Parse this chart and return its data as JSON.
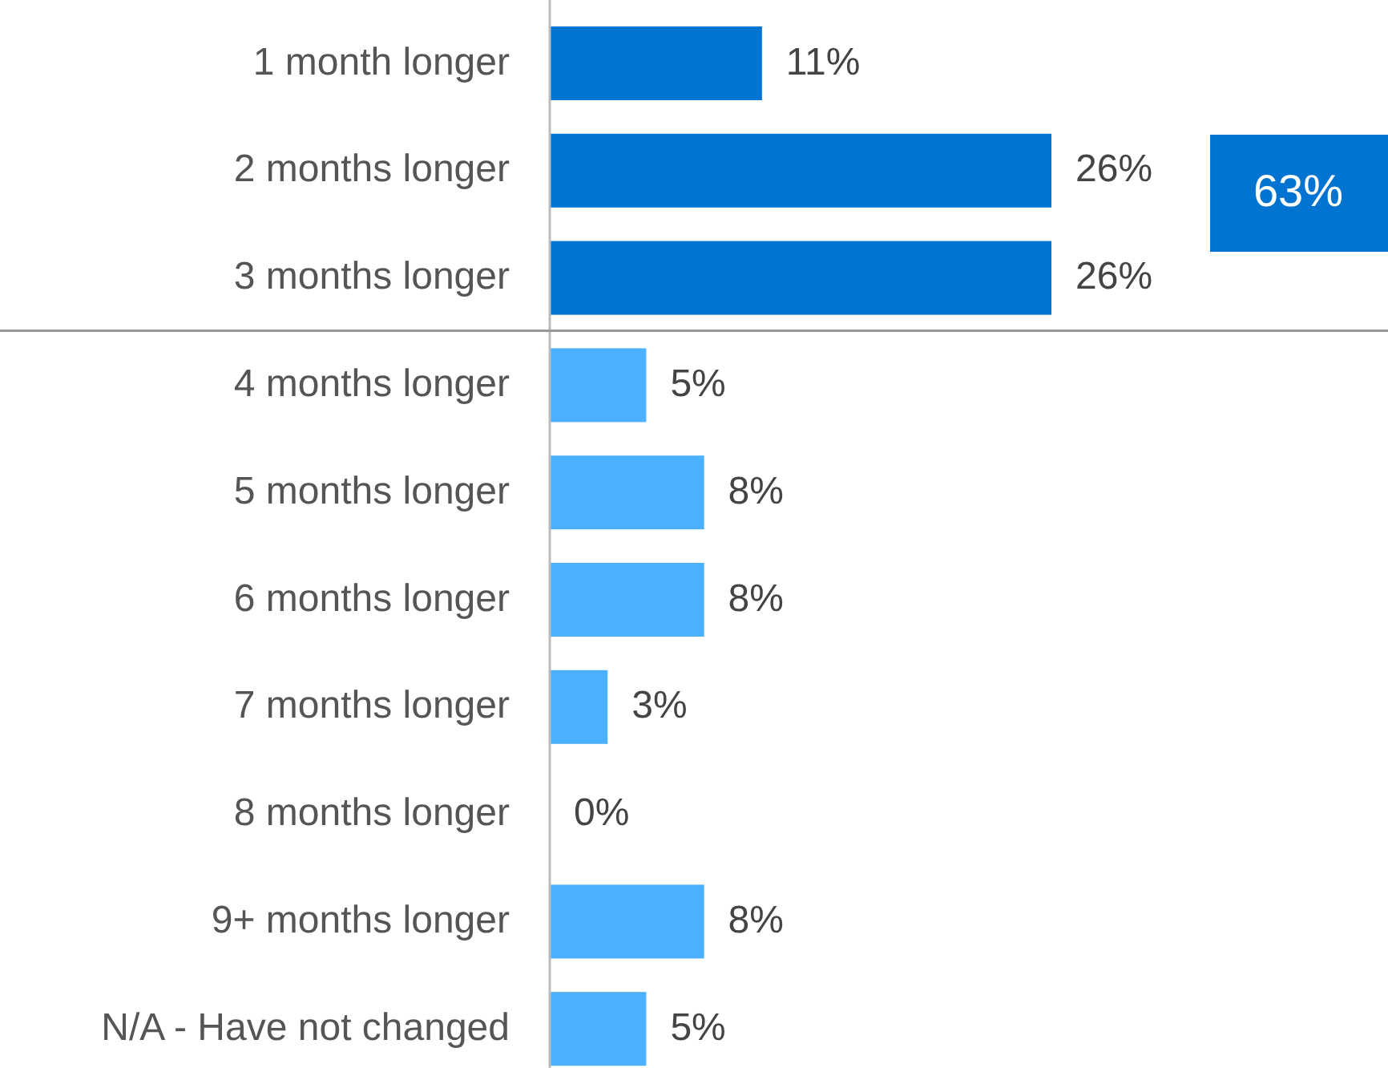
{
  "chart_data": {
    "type": "bar",
    "orientation": "horizontal",
    "categories": [
      "1 month longer",
      "2 months longer",
      "3 months longer",
      "4 months longer",
      "5 months longer",
      "6 months longer",
      "7 months longer",
      "8 months longer",
      "9+ months longer",
      "N/A - Have not changed"
    ],
    "values": [
      11,
      26,
      26,
      5,
      8,
      8,
      3,
      0,
      8,
      5
    ],
    "colors": [
      "#0074d0",
      "#0074d0",
      "#0074d0",
      "#4ab0ff",
      "#4ab0ff",
      "#4ab0ff",
      "#4ab0ff",
      "#4ab0ff",
      "#4ab0ff",
      "#4ab0ff"
    ],
    "value_labels": [
      "11%",
      "26%",
      "26%",
      "5%",
      "8%",
      "8%",
      "3%",
      "0%",
      "8%",
      "5%"
    ],
    "annotations": [
      "63%"
    ]
  }
}
